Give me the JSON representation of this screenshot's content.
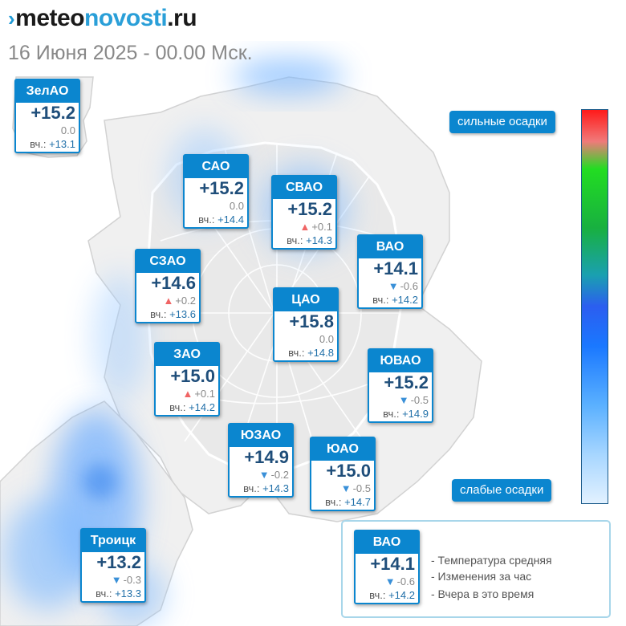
{
  "brand": {
    "mark": "›",
    "part1": "meteo",
    "part2": "novosti",
    "part3": ".ru"
  },
  "subtitle": "16 Июня 2025 - 00.00 Мск.",
  "colors": {
    "card_header": "#0b86cf",
    "temp_text": "#1f4e7a",
    "up_arrow": "#f06565",
    "down_arrow": "#3a90d8"
  },
  "icons": {
    "up": "▲",
    "down": "▼"
  },
  "yest_label": "вч.:",
  "districts": [
    {
      "name": "ЗелАО",
      "temp": "+15.2",
      "change": "0.0",
      "trend": "none",
      "yesterday": "+13.1"
    },
    {
      "name": "САО",
      "temp": "+15.2",
      "change": "0.0",
      "trend": "none",
      "yesterday": "+14.4"
    },
    {
      "name": "СВАО",
      "temp": "+15.2",
      "change": "+0.1",
      "trend": "up",
      "yesterday": "+14.3"
    },
    {
      "name": "ВАО",
      "temp": "+14.1",
      "change": "-0.6",
      "trend": "down",
      "yesterday": "+14.2"
    },
    {
      "name": "СЗАО",
      "temp": "+14.6",
      "change": "+0.2",
      "trend": "up",
      "yesterday": "+13.6"
    },
    {
      "name": "ЦАО",
      "temp": "+15.8",
      "change": "0.0",
      "trend": "none",
      "yesterday": "+14.8"
    },
    {
      "name": "ЗАО",
      "temp": "+15.0",
      "change": "+0.1",
      "trend": "up",
      "yesterday": "+14.2"
    },
    {
      "name": "ЮВАО",
      "temp": "+15.2",
      "change": "-0.5",
      "trend": "down",
      "yesterday": "+14.9"
    },
    {
      "name": "ЮЗАО",
      "temp": "+14.9",
      "change": "-0.2",
      "trend": "down",
      "yesterday": "+14.3"
    },
    {
      "name": "ЮАО",
      "temp": "+15.0",
      "change": "-0.5",
      "trend": "down",
      "yesterday": "+14.7"
    },
    {
      "name": "Троицк",
      "temp": "+13.2",
      "change": "-0.3",
      "trend": "down",
      "yesterday": "+13.3"
    }
  ],
  "precip_legend": {
    "strong": "сильные осадки",
    "weak": "слабые осадки"
  },
  "key": {
    "sample": {
      "name": "ВАО",
      "temp": "+14.1",
      "change": "-0.6",
      "trend": "down",
      "yesterday": "+14.2"
    },
    "lines": [
      "- Температура средняя",
      "- Изменения за час",
      "- Вчера в это время"
    ]
  }
}
